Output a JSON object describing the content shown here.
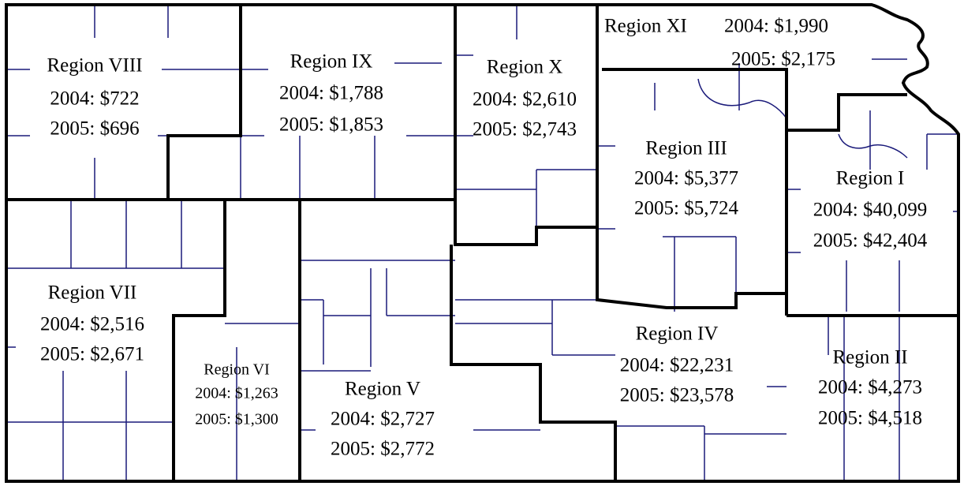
{
  "regions": [
    {
      "name": "Region VIII",
      "lines": [
        "2004: $722",
        "2005: $696"
      ]
    },
    {
      "name": "Region IX",
      "lines": [
        "2004: $1,788",
        "2005: $1,853"
      ]
    },
    {
      "name": "Region X",
      "lines": [
        "2004: $2,610",
        "2005: $2,743"
      ]
    },
    {
      "name": "Region XI",
      "lines": [
        "2004: $1,990",
        "2005: $2,175"
      ]
    },
    {
      "name": "Region III",
      "lines": [
        "2004: $5,377",
        "2005: $5,724"
      ]
    },
    {
      "name": "Region I",
      "lines": [
        "2004: $40,099",
        "2005: $42,404"
      ]
    },
    {
      "name": "Region VII",
      "lines": [
        "2004: $2,516",
        "2005: $2,671"
      ]
    },
    {
      "name": "Region VI",
      "lines": [
        "2004: $1,263",
        "2005: $1,300"
      ]
    },
    {
      "name": "Region V",
      "lines": [
        "2004: $2,727",
        "2005: $2,772"
      ]
    },
    {
      "name": "Region IV",
      "lines": [
        "2004: $22,231",
        "2005: $23,578"
      ]
    },
    {
      "name": "Region II",
      "lines": [
        "2004: $4,273",
        "2005: $4,518"
      ]
    }
  ]
}
